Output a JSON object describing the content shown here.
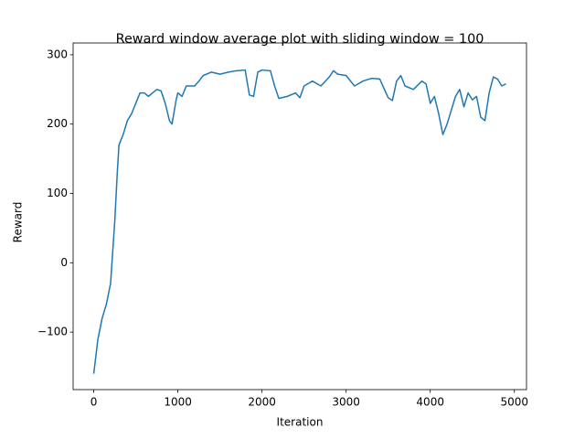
{
  "chart_data": {
    "type": "line",
    "title": "Reward window average plot with sliding window = 100",
    "x_label": "Iteration",
    "y_label": "Reward",
    "color": "#1f77b4",
    "xlim": [
      -245,
      5144
    ],
    "ylim": [
      -183,
      317
    ],
    "xticks": [
      0,
      1000,
      2000,
      3000,
      4000,
      5000
    ],
    "yticks": [
      {
        "value": -100,
        "label": "−100"
      },
      0,
      100,
      200,
      300
    ],
    "x": [
      0,
      50,
      100,
      150,
      200,
      250,
      280,
      300,
      350,
      400,
      450,
      500,
      550,
      600,
      650,
      700,
      750,
      800,
      850,
      900,
      930,
      980,
      1000,
      1050,
      1100,
      1150,
      1200,
      1250,
      1300,
      1400,
      1500,
      1600,
      1700,
      1800,
      1850,
      1900,
      1950,
      2000,
      2100,
      2150,
      2200,
      2300,
      2400,
      2450,
      2500,
      2600,
      2700,
      2800,
      2850,
      2900,
      3000,
      3100,
      3200,
      3300,
      3400,
      3500,
      3550,
      3600,
      3650,
      3700,
      3800,
      3900,
      3950,
      4000,
      4050,
      4100,
      4150,
      4200,
      4300,
      4350,
      4400,
      4450,
      4500,
      4550,
      4600,
      4650,
      4700,
      4750,
      4800,
      4850,
      4899
    ],
    "values": [
      -160,
      -110,
      -80,
      -60,
      -30,
      60,
      130,
      170,
      185,
      205,
      215,
      230,
      245,
      245,
      240,
      245,
      250,
      248,
      230,
      205,
      200,
      235,
      245,
      240,
      255,
      255,
      255,
      262,
      270,
      275,
      272,
      275,
      277,
      278,
      242,
      240,
      275,
      278,
      277,
      255,
      237,
      240,
      245,
      238,
      255,
      262,
      255,
      268,
      277,
      272,
      270,
      255,
      262,
      266,
      265,
      238,
      234,
      262,
      270,
      255,
      250,
      262,
      258,
      230,
      240,
      215,
      185,
      200,
      240,
      250,
      225,
      245,
      235,
      240,
      210,
      205,
      245,
      268,
      265,
      255,
      258
    ]
  }
}
